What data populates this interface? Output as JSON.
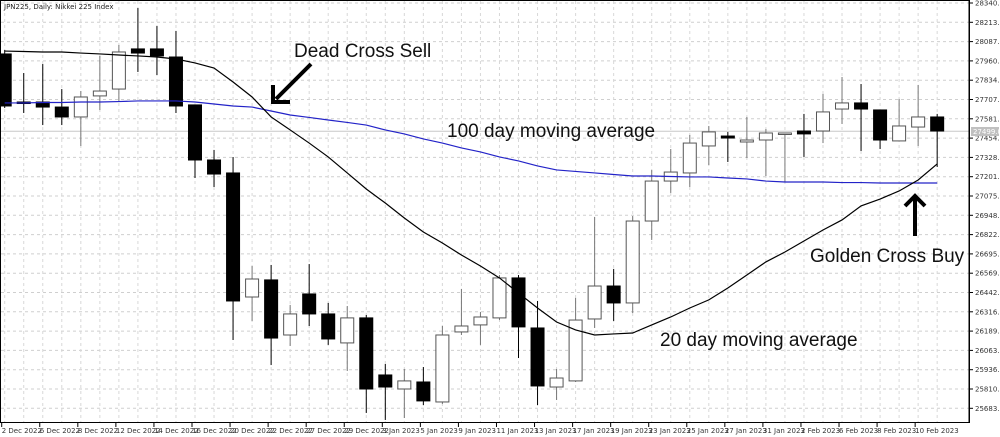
{
  "header": {
    "title": "JPN225, Daily: Nikkei 225 Index"
  },
  "chart_data": {
    "type": "candlestick",
    "title": "JPN225, Daily: Nikkei 225 Index",
    "ylim": [
      25620,
      28360
    ],
    "y_ticks": [
      "28340.0",
      "28213.5",
      "28087.0",
      "27960.5",
      "27834.0",
      "27707.5",
      "27581.0",
      "27454.5",
      "27328.0",
      "27201.5",
      "27075.0",
      "26948.5",
      "26822.0",
      "26695.5",
      "26569.0",
      "26442.5",
      "26316.0",
      "26189.5",
      "26063.0",
      "25936.5",
      "25810.0",
      "25683.5"
    ],
    "x_ticks": [
      "2 Dec 2022",
      "6 Dec 2022",
      "8 Dec 2022",
      "12 Dec 2022",
      "14 Dec 2022",
      "16 Dec 2022",
      "20 Dec 2022",
      "22 Dec 2022",
      "27 Dec 2022",
      "29 Dec 2022",
      "3 Jan 2023",
      "5 Jan 2023",
      "9 Jan 2023",
      "11 Jan 2023",
      "13 Jan 2023",
      "17 Jan 2023",
      "19 Jan 2023",
      "23 Jan 2023",
      "25 Jan 2023",
      "27 Jan 2023",
      "31 Jan 2023",
      "2 Feb 2023",
      "6 Feb 2023",
      "8 Feb 2023",
      "10 Feb 2023"
    ],
    "current_price_label": "27499.0",
    "current_price": 27499,
    "ohlc": [
      [
        28006,
        28032,
        27652,
        27665
      ],
      [
        27691,
        27881,
        27619,
        27685
      ],
      [
        27691,
        27940,
        27540,
        27658
      ],
      [
        27658,
        27776,
        27540,
        27593
      ],
      [
        27593,
        27763,
        27403,
        27724
      ],
      [
        27731,
        27993,
        27639,
        27763
      ],
      [
        27776,
        28065,
        27698,
        28019
      ],
      [
        28039,
        28307,
        27888,
        28012
      ],
      [
        28039,
        28189,
        27868,
        27993
      ],
      [
        27986,
        28157,
        27619,
        27665
      ],
      [
        27672,
        27672,
        27193,
        27311
      ],
      [
        27311,
        27377,
        27134,
        27219
      ],
      [
        27226,
        27331,
        26131,
        26387
      ],
      [
        26413,
        26616,
        26256,
        26531
      ],
      [
        26525,
        26623,
        25967,
        26144
      ],
      [
        26164,
        26361,
        26092,
        26302
      ],
      [
        26433,
        26629,
        26223,
        26302
      ],
      [
        26302,
        26374,
        26099,
        26138
      ],
      [
        26112,
        26354,
        25928,
        26276
      ],
      [
        26276,
        26295,
        25653,
        25810
      ],
      [
        25902,
        25974,
        25607,
        25823
      ],
      [
        25810,
        25941,
        25620,
        25863
      ],
      [
        25856,
        25954,
        25705,
        25732
      ],
      [
        25725,
        26223,
        25712,
        26164
      ],
      [
        26184,
        26466,
        26164,
        26223
      ],
      [
        26230,
        26315,
        26099,
        26282
      ],
      [
        26276,
        26557,
        26262,
        26538
      ],
      [
        26538,
        26557,
        26013,
        26217
      ],
      [
        26210,
        26387,
        25705,
        25830
      ],
      [
        25823,
        25941,
        25738,
        25882
      ],
      [
        25863,
        26407,
        25856,
        26262
      ],
      [
        26269,
        26938,
        26210,
        26485
      ],
      [
        26485,
        26597,
        26256,
        26374
      ],
      [
        26374,
        26944,
        26308,
        26911
      ],
      [
        26911,
        27245,
        26787,
        27173
      ],
      [
        27173,
        27383,
        27095,
        27232
      ],
      [
        27226,
        27475,
        27134,
        27422
      ],
      [
        27403,
        27534,
        27278,
        27495
      ],
      [
        27468,
        27495,
        27298,
        27455
      ],
      [
        27429,
        27593,
        27324,
        27442
      ],
      [
        27442,
        27514,
        27206,
        27488
      ],
      [
        27488,
        27490,
        27167,
        27488
      ],
      [
        27501,
        27613,
        27331,
        27482
      ],
      [
        27501,
        27744,
        27422,
        27626
      ],
      [
        27645,
        27855,
        27547,
        27685
      ],
      [
        27685,
        27809,
        27370,
        27645
      ],
      [
        27639,
        27639,
        27383,
        27442
      ],
      [
        27436,
        27711,
        27436,
        27534
      ],
      [
        27527,
        27803,
        27403,
        27593
      ],
      [
        27593,
        27613,
        27265,
        27501
      ]
    ],
    "series": [
      {
        "name": "20 day moving average",
        "color": "#000000",
        "values": [
          28025,
          28022,
          28019,
          28019,
          28012,
          28006,
          27999,
          27993,
          27986,
          27973,
          27947,
          27914,
          27822,
          27724,
          27593,
          27508,
          27422,
          27331,
          27226,
          27121,
          27029,
          26931,
          26839,
          26767,
          26688,
          26616,
          26538,
          26439,
          26341,
          26249,
          26197,
          26164,
          26171,
          26177,
          26230,
          26282,
          26341,
          26394,
          26472,
          26557,
          26643,
          26708,
          26780,
          26852,
          26918,
          27010,
          27055,
          27108,
          27180,
          27285
        ]
      },
      {
        "name": "100 day moving average",
        "color": "#2323c8",
        "values": [
          27685,
          27685,
          27688,
          27688,
          27691,
          27691,
          27694,
          27698,
          27698,
          27698,
          27691,
          27678,
          27665,
          27658,
          27632,
          27606,
          27590,
          27573,
          27557,
          27540,
          27508,
          27482,
          27449,
          27422,
          27390,
          27364,
          27331,
          27305,
          27272,
          27246,
          27236,
          27226,
          27216,
          27206,
          27206,
          27203,
          27200,
          27200,
          27193,
          27187,
          27173,
          27167,
          27167,
          27167,
          27163,
          27163,
          27160,
          27160,
          27160,
          27160
        ]
      }
    ],
    "annotations": {
      "dead_cross": "Dead Cross Sell",
      "ma100": "100 day moving average",
      "golden_cross": "Golden Cross Buy",
      "ma20": "20 day moving average"
    },
    "grid": true
  }
}
